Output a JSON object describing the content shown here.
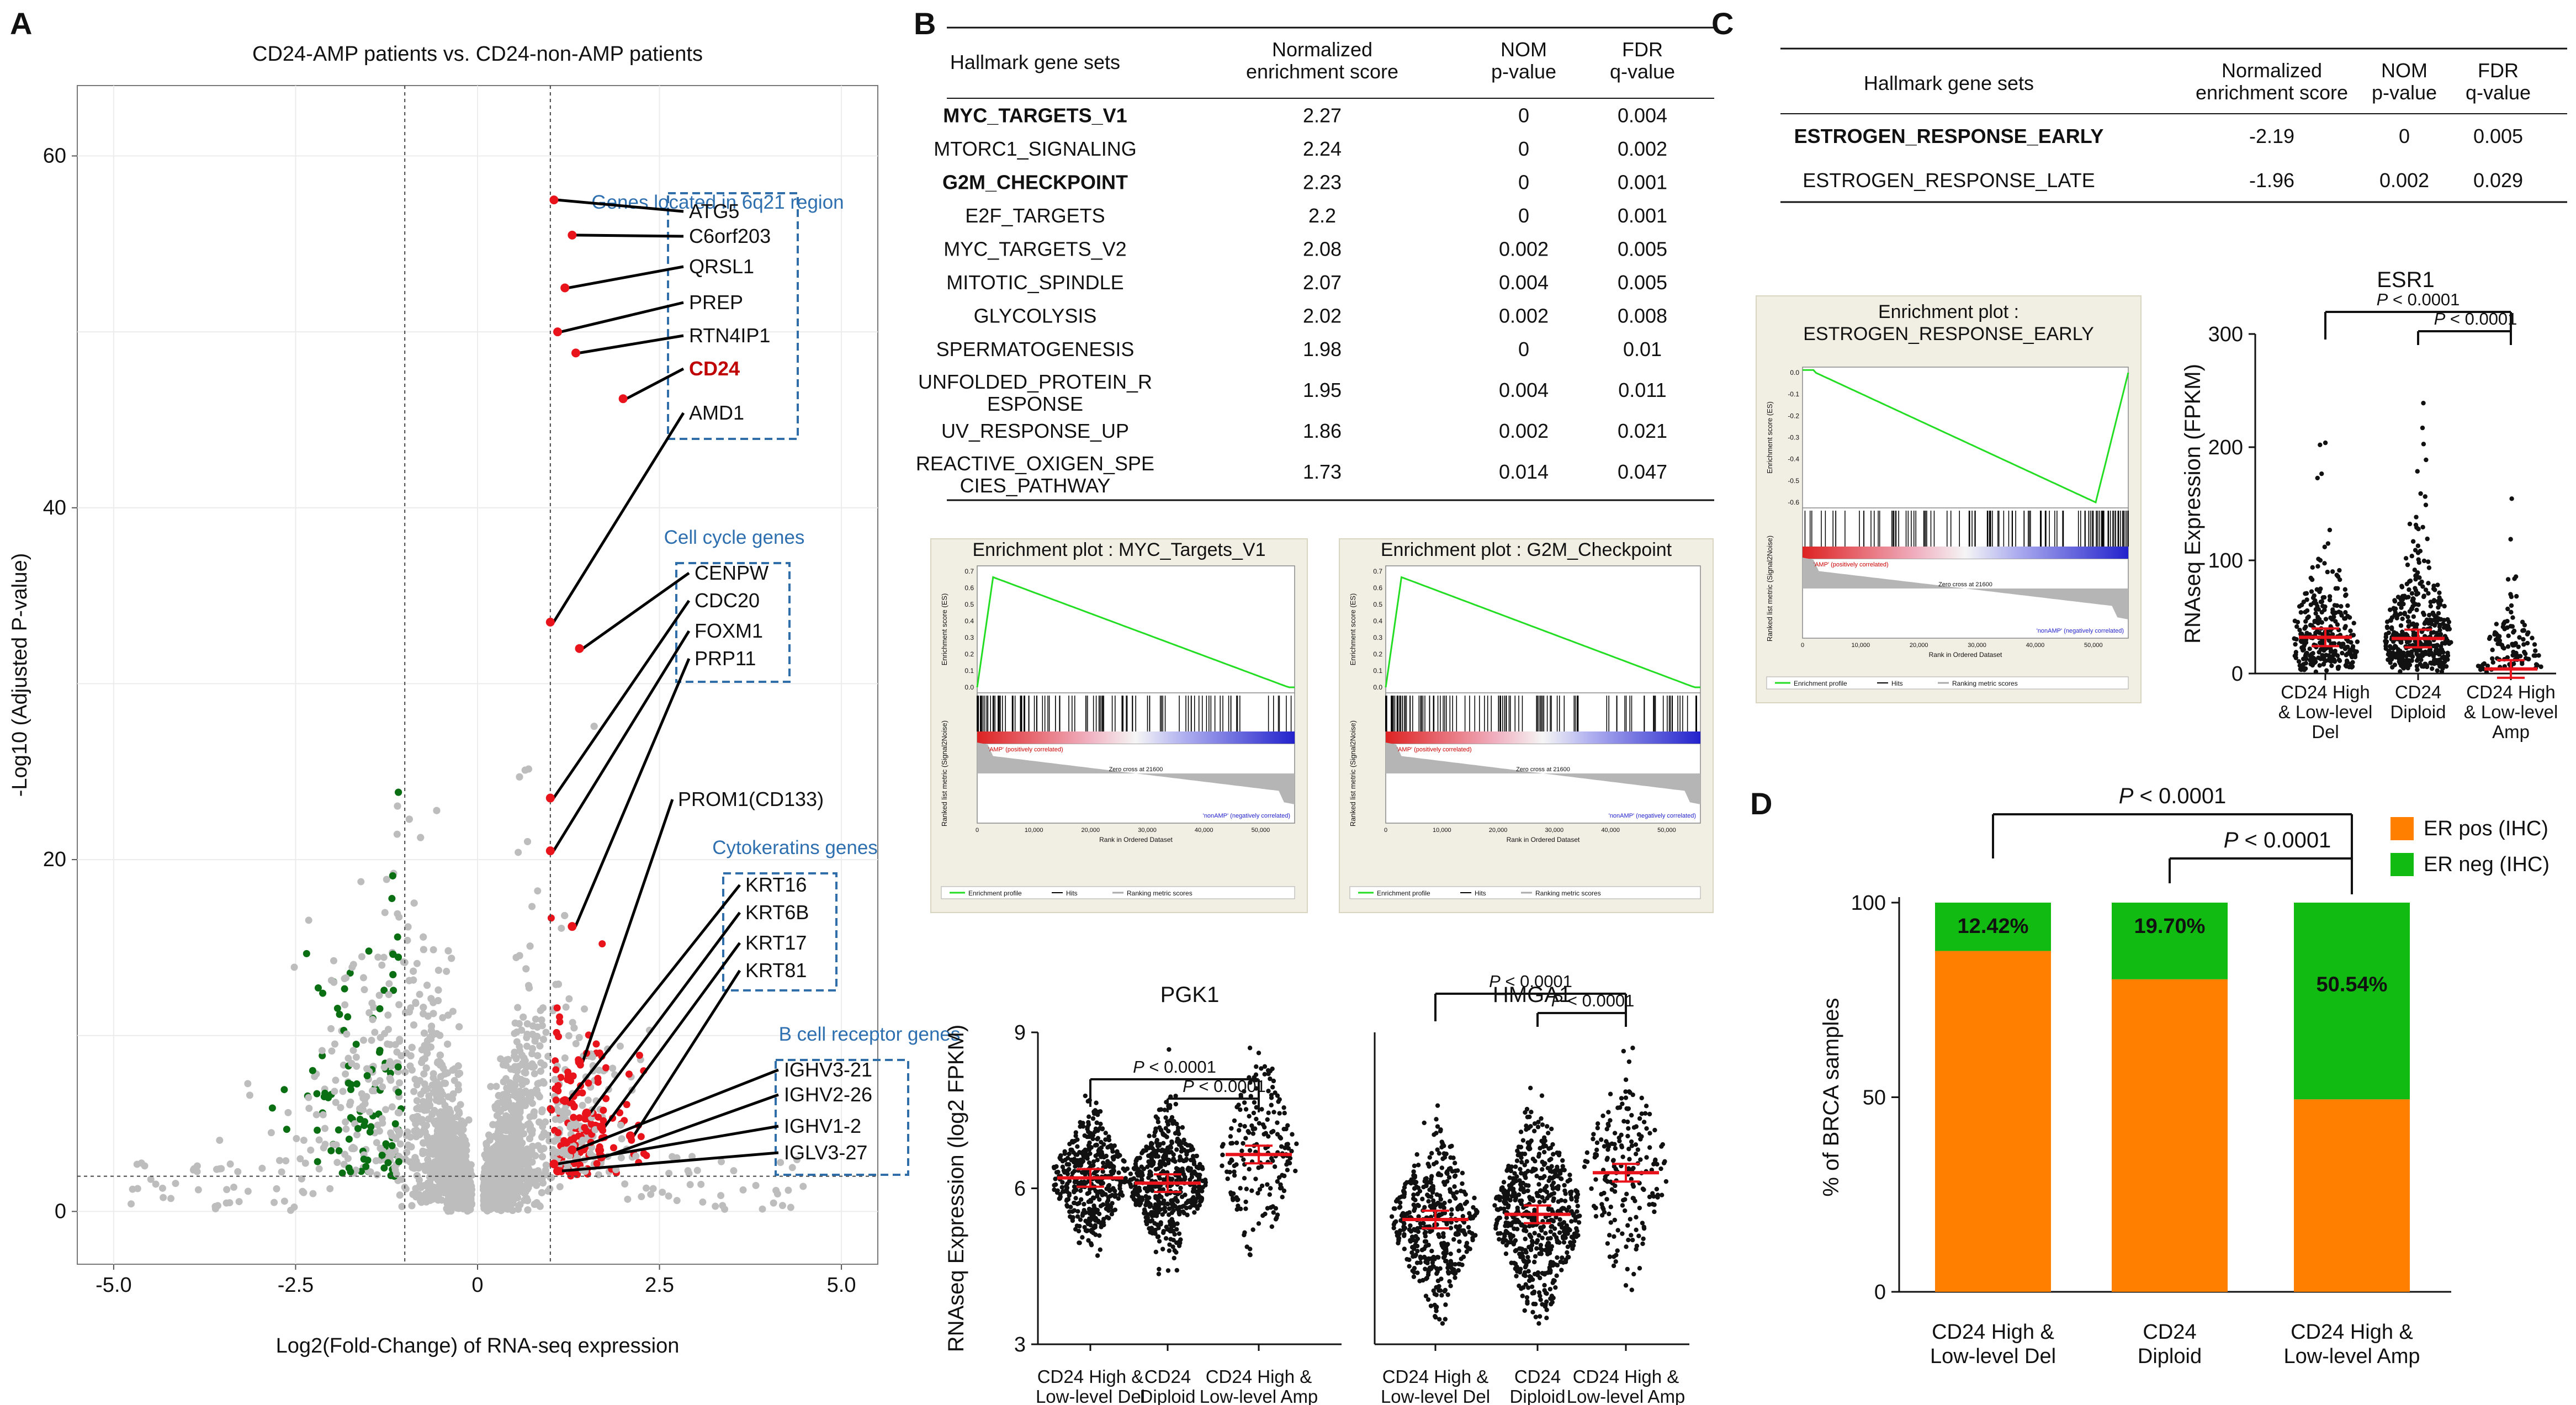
{
  "colors": {
    "up": "#e8131b",
    "down": "#0a6e12",
    "neutral": "#bdbdbd",
    "box": "#2f6ea8",
    "box_text": "#2e6fb0",
    "highlight": "#c00000",
    "er_pos": "#ff7f00",
    "er_neg": "#11bb11",
    "mean": "#e8131b",
    "gsea_line": "#22dd22"
  },
  "panels": {
    "a": "A",
    "b": "B",
    "c": "C",
    "d": "D"
  },
  "table_b": {
    "headers": [
      "Hallmark gene sets",
      "Normalized\nenrichment score",
      "NOM\np-value",
      "FDR\nq-value"
    ],
    "rows": [
      {
        "name": "MYC_TARGETS_V1",
        "nes": "2.27",
        "nom": "0",
        "fdr": "0.004",
        "bold": true
      },
      {
        "name": "MTORC1_SIGNALING",
        "nes": "2.24",
        "nom": "0",
        "fdr": "0.002",
        "bold": false
      },
      {
        "name": "G2M_CHECKPOINT",
        "nes": "2.23",
        "nom": "0",
        "fdr": "0.001",
        "bold": true
      },
      {
        "name": "E2F_TARGETS",
        "nes": "2.2",
        "nom": "0",
        "fdr": "0.001",
        "bold": false
      },
      {
        "name": "MYC_TARGETS_V2",
        "nes": "2.08",
        "nom": "0.002",
        "fdr": "0.005",
        "bold": false
      },
      {
        "name": "MITOTIC_SPINDLE",
        "nes": "2.07",
        "nom": "0.004",
        "fdr": "0.005",
        "bold": false
      },
      {
        "name": "GLYCOLYSIS",
        "nes": "2.02",
        "nom": "0.002",
        "fdr": "0.008",
        "bold": false
      },
      {
        "name": "SPERMATOGENESIS",
        "nes": "1.98",
        "nom": "0",
        "fdr": "0.01",
        "bold": false
      },
      {
        "name": "UNFOLDED_PROTEIN_R\nESPONSE",
        "nes": "1.95",
        "nom": "0.004",
        "fdr": "0.011",
        "bold": false
      },
      {
        "name": "UV_RESPONSE_UP",
        "nes": "1.86",
        "nom": "0.002",
        "fdr": "0.021",
        "bold": false
      },
      {
        "name": "REACTIVE_OXIGEN_SPE\nCIES_PATHWAY",
        "nes": "1.73",
        "nom": "0.014",
        "fdr": "0.047",
        "bold": false
      }
    ]
  },
  "table_c": {
    "headers": [
      "Hallmark gene sets",
      "Normalized\nenrichment score",
      "NOM\np-value",
      "FDR\nq-value"
    ],
    "rows": [
      {
        "name": "ESTROGEN_RESPONSE_EARLY",
        "nes": "-2.19",
        "nom": "0",
        "fdr": "0.005",
        "bold": true
      },
      {
        "name": "ESTROGEN_RESPONSE_LATE",
        "nes": "-1.96",
        "nom": "0.002",
        "fdr": "0.029",
        "bold": false
      }
    ]
  },
  "gsea": {
    "ylabel_es": "Enrichment score (ES)",
    "ylabel_rank": "Ranked list metric (Signal2Noise)",
    "xlabel": "Rank in Ordered Dataset",
    "pos_label": "'AMP' (positively correlated)",
    "neg_label": "'nonAMP' (negatively correlated)",
    "zero_cross": "Zero cross at 21600",
    "legend": [
      "Enrichment profile",
      "Hits",
      "Ranking metric scores"
    ],
    "myc_title": "Enrichment plot : MYC_Targets_V1",
    "g2m_title": "Enrichment plot : G2M_Checkpoint",
    "estrogen_title": "Enrichment plot :\nESTROGEN_RESPONSE_EARLY",
    "x_ticks": [
      "0",
      "10,000",
      "20,000",
      "30,000",
      "40,000",
      "50,000"
    ],
    "es_ticks_up": [
      "0.0",
      "0.1",
      "0.2",
      "0.3",
      "0.4",
      "0.5",
      "0.6",
      "0.7"
    ],
    "es_ticks_down": [
      "0.0",
      "-0.1",
      "-0.2",
      "-0.3",
      "-0.4",
      "-0.5",
      "-0.6"
    ]
  },
  "chart_data": [
    {
      "id": "volcano",
      "type": "scatter",
      "title": "CD24-AMP patients vs. CD24-non-AMP patients",
      "xlabel": "Log2(Fold-Change) of RNA-seq expression",
      "ylabel": "-Log10 (Adjusted P-value)",
      "xlim": [
        -5.5,
        5.5
      ],
      "ylim": [
        -3,
        64
      ],
      "x_ticks": [
        "-5.0",
        "-2.5",
        "0",
        "2.5",
        "5.0"
      ],
      "y_ticks": [
        "0",
        "20",
        "40",
        "60"
      ],
      "vlines": [
        -1,
        1
      ],
      "hline": 2,
      "groups": [
        {
          "label": "Genes located in 6q21 region",
          "genes": [
            "ATG5",
            "C6orf203",
            "QRSL1",
            "PREP",
            "RTN4IP1",
            "CD24",
            "AMD1"
          ],
          "highlight": "CD24",
          "points": [
            [
              1.05,
              57.5
            ],
            [
              1.3,
              55.5
            ],
            [
              1.2,
              52.5
            ],
            [
              1.1,
              50
            ],
            [
              1.35,
              48.8
            ],
            [
              2.0,
              46.2
            ],
            [
              1.0,
              33.5
            ]
          ]
        },
        {
          "label": "Cell cycle genes",
          "genes": [
            "CENPW",
            "CDC20",
            "FOXM1",
            "PRP11"
          ],
          "points": [
            [
              1.4,
              32
            ],
            [
              1.0,
              23.5
            ],
            [
              1.0,
              20.5
            ],
            [
              1.3,
              16.2
            ]
          ]
        },
        {
          "label": "",
          "genes": [
            "PROM1(CD133)"
          ],
          "points": [
            [
              1.4,
              8.5
            ]
          ]
        },
        {
          "label": "Cytokeratins genes",
          "genes": [
            "KRT16",
            "KRT6B",
            "KRT17",
            "KRT81"
          ],
          "points": [
            [
              1.2,
              6.3
            ],
            [
              1.5,
              5.6
            ],
            [
              1.7,
              4.8
            ],
            [
              2.1,
              4.3
            ]
          ]
        },
        {
          "label": "B cell receptor genes",
          "genes": [
            "IGHV3-21",
            "IGHV2-26",
            "IGHV1-2",
            "IGLV3-27"
          ],
          "points": [
            [
              1.3,
              3.5
            ],
            [
              1.7,
              3.1
            ],
            [
              1.05,
              2.7
            ],
            [
              1.1,
              2.3
            ]
          ]
        }
      ]
    },
    {
      "id": "pgk1",
      "type": "scatter",
      "title": "PGK1",
      "ylabel": "RNAseq Expression (log2 FPKM)",
      "ylim": [
        3,
        9
      ],
      "y_ticks": [
        "3",
        "6",
        "9"
      ],
      "categories": [
        "CD24 High &\nLow-level Del",
        "CD24\nDiploid",
        "CD24 High &\nLow-level  Amp"
      ],
      "means": [
        6.2,
        6.1,
        6.65
      ],
      "p_labels": [
        "P < 0.0001",
        "P < 0.0001"
      ]
    },
    {
      "id": "hmga1",
      "type": "scatter",
      "title": "HMGA1",
      "ylim": [
        3,
        9
      ],
      "categories": [
        "CD24 High &\nLow-level Del",
        "CD24\nDiploid",
        "CD24 High &\nLow-level  Amp"
      ],
      "means": [
        5.4,
        5.5,
        6.3
      ],
      "p_labels": [
        "P < 0.0001",
        "P < 0.0001"
      ]
    },
    {
      "id": "esr1",
      "type": "scatter",
      "title": "ESR1",
      "ylabel": "RNAseq Expression (FPKM)",
      "ylim": [
        0,
        300
      ],
      "y_ticks": [
        "0",
        "100",
        "200",
        "300"
      ],
      "categories": [
        "CD24 High\n& Low-level\nDel",
        "CD24\nDiploid",
        "CD24 High\n& Low-level\nAmp"
      ],
      "means": [
        32,
        31,
        4
      ],
      "p_labels": [
        "P < 0.0001",
        "P < 0.0001"
      ]
    },
    {
      "id": "er_bar",
      "type": "bar",
      "ylabel": "% of  BRCA samples",
      "ylim": [
        0,
        100
      ],
      "y_ticks": [
        "0",
        "50",
        "100"
      ],
      "categories": [
        "CD24 High &\nLow-level Del",
        "CD24\nDiploid",
        "CD24 High &\nLow-level  Amp"
      ],
      "series": [
        {
          "name": "ER pos (IHC)",
          "values": [
            87.58,
            80.3,
            49.46
          ]
        },
        {
          "name": "ER neg (IHC)",
          "values": [
            12.42,
            19.7,
            50.54
          ]
        }
      ],
      "data_labels": [
        "12.42%",
        "19.70%",
        "50.54%"
      ],
      "p_labels": [
        "P < 0.0001",
        "P < 0.0001"
      ]
    }
  ]
}
